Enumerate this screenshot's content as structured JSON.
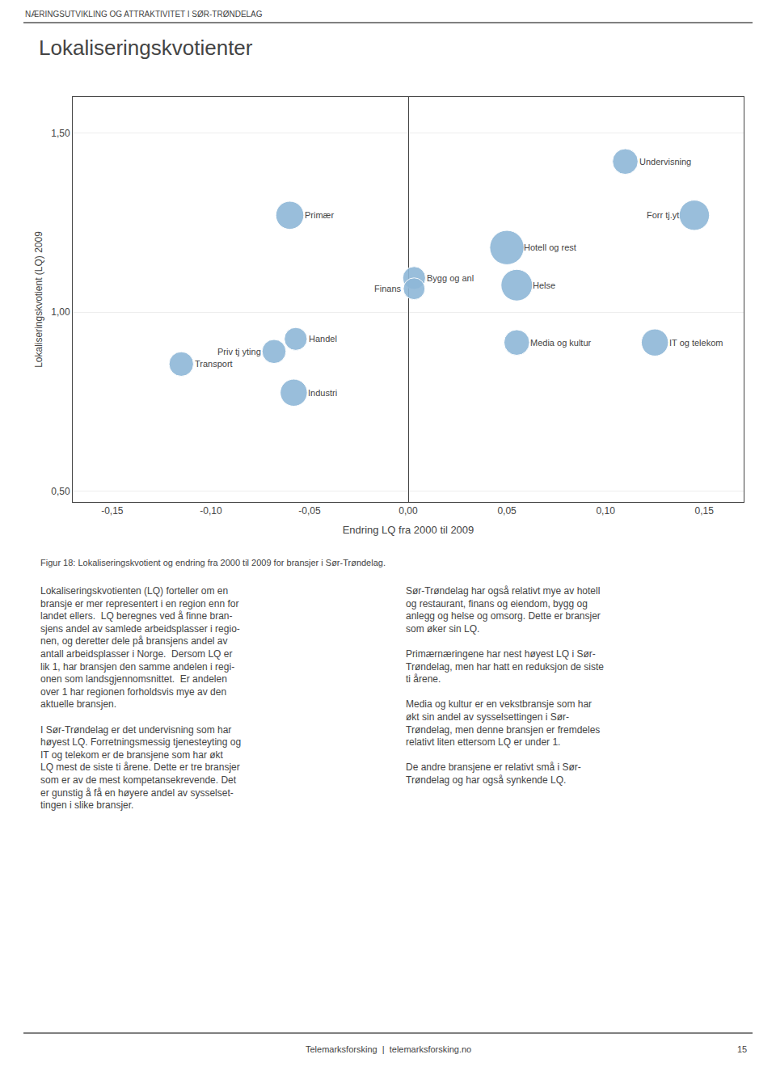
{
  "chart_data": {
    "type": "scatter",
    "title": "Lokaliseringskvotienter",
    "header": "NÆRINGSUTVIKLING OG ATTRAKTIVITET I SØR-TRØNDELAG",
    "xlabel": "Endring LQ fra 2000 til 2009",
    "ylabel": "Lokaliseringskvotient (LQ) 2009",
    "caption": "Figur 18: Lokaliseringskvotient og endring fra 2000 til 2009 for bransjer i Sør-Trøndelag.",
    "body_text": [
      "Lokaliseringskvotienten (LQ) forteller om en\nbransje er mer representert i en region enn for\nlandet ellers.  LQ beregnes ved å finne bran-\nsjens andel av samlede arbeidsplasser i regio-\nnen, og deretter dele på bransjens andel av\nantall arbeidsplasser i Norge.  Dersom LQ er\nlik 1, har bransjen den samme andelen i regi-\nonen som landsgjennomsnittet.  Er andelen\nover 1 har regionen forholdsvis mye av den\naktuelle bransjen.\n\nI Sør-Trøndelag er det undervisning som har\nhøyest LQ. Forretningsmessig tjenesteyting og\nIT og telekom er de bransjene som har økt\nLQ mest de siste ti årene. Dette er tre bransjer\nsom er av de mest kompetansekrevende. Det\ner gunstig å få en høyere andel av sysselset-\ntingen i slike bransjer.",
      "Sør-Trøndelag har også relativt mye av hotell\nog restaurant, finans og eiendom, bygg og\nanlegg og helse og omsorg. Dette er bransjer\nsom øker sin LQ.\n\nPrimærnæringene har nest høyest LQ i Sør-\nTrøndelag, men har hatt en reduksjon de siste\nti årene.\n\nMedia og kultur er en vekstbransje som har\nøkt sin andel av sysselsettingen i Sør-\nTrøndelag, men denne bransjen er fremdeles\nrelativt liten ettersom LQ er under 1.\n\nDe andre bransjene er relativt små i Sør-\nTrøndelag og har også synkende LQ."
    ],
    "footer": "Telemarksforsking  |  telemarksforsking.no",
    "page_number": "15",
    "xlim": [
      -0.17,
      0.17
    ],
    "ylim": [
      0.47,
      1.6
    ],
    "xticks": [
      {
        "value": -0.15,
        "label": "-0,15"
      },
      {
        "value": -0.1,
        "label": "-0,10"
      },
      {
        "value": -0.05,
        "label": "-0,05"
      },
      {
        "value": 0.0,
        "label": "0,00"
      },
      {
        "value": 0.05,
        "label": "0,05"
      },
      {
        "value": 0.1,
        "label": "0,10"
      },
      {
        "value": 0.15,
        "label": "0,15"
      }
    ],
    "yticks": [
      {
        "value": 0.5,
        "label": "0,50"
      },
      {
        "value": 1.0,
        "label": "1,00"
      },
      {
        "value": 1.5,
        "label": "1,50"
      }
    ],
    "grid": "y",
    "color": "#8FB8D8",
    "points": [
      {
        "label": "Undervisning",
        "x": 0.11,
        "y": 1.42,
        "size": 250
      },
      {
        "label": "Forr tj.yt",
        "x": 0.145,
        "y": 1.27,
        "size": 350
      },
      {
        "label": "Hotell og rest",
        "x": 0.05,
        "y": 1.18,
        "size": 450
      },
      {
        "label": "Bygg og anl",
        "x": 0.003,
        "y": 1.095,
        "size": 200
      },
      {
        "label": "Finans",
        "x": 0.003,
        "y": 1.065,
        "size": 180
      },
      {
        "label": "Helse",
        "x": 0.055,
        "y": 1.075,
        "size": 380
      },
      {
        "label": "Primær",
        "x": -0.06,
        "y": 1.27,
        "size": 300
      },
      {
        "label": "Handel",
        "x": -0.057,
        "y": 0.925,
        "size": 200
      },
      {
        "label": "Priv tj yting",
        "x": -0.068,
        "y": 0.89,
        "size": 220
      },
      {
        "label": "Transport",
        "x": -0.115,
        "y": 0.855,
        "size": 230
      },
      {
        "label": "Industri",
        "x": -0.058,
        "y": 0.775,
        "size": 280
      },
      {
        "label": "Media og kultur",
        "x": 0.055,
        "y": 0.915,
        "size": 250
      },
      {
        "label": "IT og telekom",
        "x": 0.125,
        "y": 0.915,
        "size": 280
      }
    ]
  }
}
